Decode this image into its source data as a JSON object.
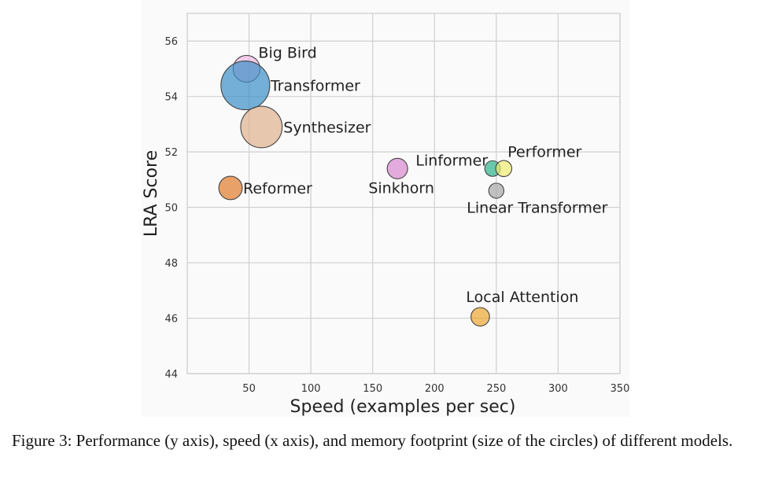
{
  "caption": {
    "text": "Figure 3: Performance (y axis), speed (x axis), and memory footprint (size of the circles) of different models."
  },
  "chart_data": {
    "type": "scatter",
    "title": "",
    "xlabel": "Speed (examples per sec)",
    "ylabel": "LRA Score",
    "xlim": [
      0,
      350
    ],
    "ylim": [
      44,
      57
    ],
    "xticks": [
      50,
      100,
      150,
      200,
      250,
      300,
      350
    ],
    "yticks": [
      44,
      46,
      48,
      50,
      52,
      54,
      56
    ],
    "grid": true,
    "legend": "none",
    "size_encoding": "memory footprint",
    "points": [
      {
        "name": "Big Bird",
        "x": 48,
        "y": 55.0,
        "size": 0.55,
        "color": "#f2b8e6"
      },
      {
        "name": "Transformer",
        "x": 47,
        "y": 54.4,
        "size": 1.0,
        "color": "#3a8fc8"
      },
      {
        "name": "Synthesizer",
        "x": 60,
        "y": 52.9,
        "size": 0.85,
        "color": "#dfb08e"
      },
      {
        "name": "Reformer",
        "x": 35,
        "y": 50.7,
        "size": 0.48,
        "color": "#e07b2a"
      },
      {
        "name": "Sinkhorn",
        "x": 170,
        "y": 51.4,
        "size": 0.42,
        "color": "#d888d0"
      },
      {
        "name": "Linformer",
        "x": 247,
        "y": 51.4,
        "size": 0.32,
        "color": "#2bb38a"
      },
      {
        "name": "Performer",
        "x": 256,
        "y": 51.4,
        "size": 0.33,
        "color": "#f0ec70"
      },
      {
        "name": "Linear Transformer",
        "x": 250,
        "y": 50.6,
        "size": 0.31,
        "color": "#a6a6a6"
      },
      {
        "name": "Local Attention",
        "x": 237,
        "y": 46.05,
        "size": 0.38,
        "color": "#eda630"
      }
    ]
  }
}
